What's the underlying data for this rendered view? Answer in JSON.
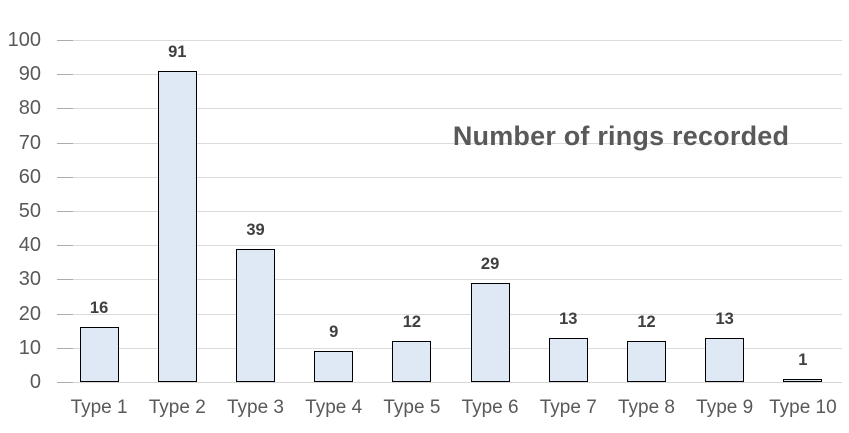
{
  "chart_data": {
    "type": "bar",
    "title": "Number of rings recorded",
    "categories": [
      "Type 1",
      "Type 2",
      "Type 3",
      "Type 4",
      "Type 5",
      "Type 6",
      "Type 7",
      "Type 8",
      "Type 9",
      "Type 10"
    ],
    "values": [
      16,
      91,
      39,
      9,
      12,
      29,
      13,
      12,
      13,
      1
    ],
    "xlabel": "",
    "ylabel": "",
    "ylim": [
      0,
      100
    ],
    "yticks": [
      100,
      90,
      80,
      70,
      60,
      50,
      40,
      30,
      20,
      10,
      0
    ],
    "grid": true,
    "legend": false,
    "data_labels": true,
    "colors": {
      "background": "#FFFFFF",
      "bar_fill": "#DFE9F5",
      "bar_border": "#000000",
      "gridline": "#DBDBDB",
      "tick": "#ACACAC",
      "axis_line": "#D6D6D6",
      "axis_label": "#595959",
      "data_label": "#404040",
      "title": "#595959"
    }
  }
}
